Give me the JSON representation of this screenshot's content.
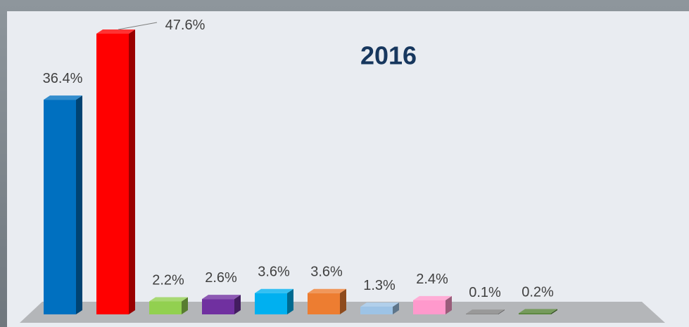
{
  "chart_data": {
    "type": "bar3d",
    "title": "2016",
    "categories": [
      null,
      null,
      null,
      null,
      null,
      null,
      null,
      null,
      null,
      null
    ],
    "values": [
      36.4,
      47.6,
      2.2,
      2.6,
      3.6,
      3.6,
      1.3,
      2.4,
      0.1,
      0.2
    ],
    "value_labels": [
      "36.4%",
      "47.6%",
      "2.2%",
      "2.6%",
      "3.6%",
      "3.6%",
      "1.3%",
      "2.4%",
      "0.1%",
      "0.2%"
    ],
    "colors": [
      "#0070c0",
      "#ff0000",
      "#92d050",
      "#7030a0",
      "#00b0f0",
      "#ed7d31",
      "#9dc3e6",
      "#ff99cc",
      "#7f7f7f",
      "#548235"
    ]
  }
}
